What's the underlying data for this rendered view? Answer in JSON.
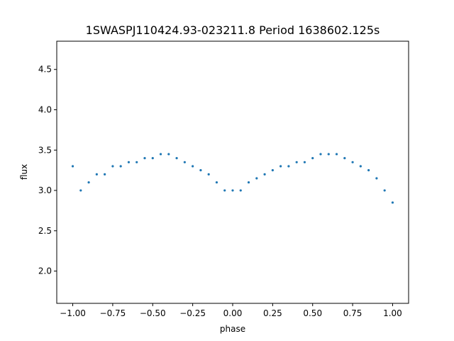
{
  "chart_data": {
    "type": "scatter",
    "title": "1SWASPJ110424.93-023211.8 Period 1638602.125s",
    "xlabel": "phase",
    "ylabel": "flux",
    "xlim": [
      -1.1,
      1.1
    ],
    "ylim": [
      1.6,
      4.85
    ],
    "xticks": [
      -1.0,
      -0.75,
      -0.5,
      -0.25,
      0.0,
      0.25,
      0.5,
      0.75,
      1.0
    ],
    "xtick_labels": [
      "−1.00",
      "−0.75",
      "−0.50",
      "−0.25",
      "0.00",
      "0.25",
      "0.50",
      "0.75",
      "1.00"
    ],
    "yticks": [
      2.0,
      2.5,
      3.0,
      3.5,
      4.0,
      4.5
    ],
    "ytick_labels": [
      "2.0",
      "2.5",
      "3.0",
      "3.5",
      "4.0",
      "4.5"
    ],
    "grid": false,
    "legend": "none",
    "point_color": "#1f77b4",
    "series": [
      {
        "x": [
          -1.0,
          -0.95,
          -0.9,
          -0.85,
          -0.8,
          -0.75,
          -0.7,
          -0.65,
          -0.6,
          -0.55,
          -0.5,
          -0.45,
          -0.4,
          -0.35,
          -0.3,
          -0.25,
          -0.2,
          -0.15,
          -0.1,
          -0.05,
          0.0,
          0.05,
          0.1,
          0.15,
          0.2,
          0.25,
          0.3,
          0.35,
          0.4,
          0.45,
          0.5,
          0.55,
          0.6,
          0.65,
          0.7,
          0.75,
          0.8,
          0.85,
          0.9,
          0.95,
          1.0
        ],
        "y": [
          3.3,
          3.0,
          3.1,
          3.2,
          3.2,
          3.3,
          3.3,
          3.35,
          3.35,
          3.4,
          3.4,
          3.45,
          3.45,
          3.4,
          3.35,
          3.3,
          3.25,
          3.2,
          3.1,
          3.0,
          3.0,
          3.0,
          3.1,
          3.15,
          3.2,
          3.25,
          3.3,
          3.3,
          3.35,
          3.35,
          3.4,
          3.45,
          3.45,
          3.45,
          3.4,
          3.35,
          3.3,
          3.25,
          3.15,
          3.0,
          2.85
        ]
      }
    ]
  }
}
